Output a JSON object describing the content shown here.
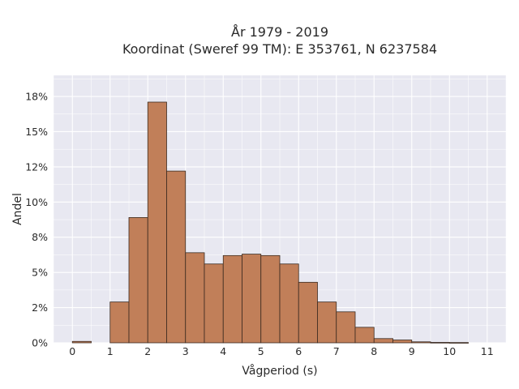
{
  "chart_data": {
    "type": "bar",
    "title": [
      "År 1979 - 2019",
      "Koordinat (Sweref 99 TM): E 353761, N 6237584"
    ],
    "xlabel": "Vågperiod (s)",
    "ylabel": "Andel",
    "xlim": [
      -0.5,
      11.5
    ],
    "ylim": [
      0,
      0.19
    ],
    "grid": true,
    "bar_width": 0.5,
    "bar_color": "#c17f59",
    "bar_edge_color": "#3a2a20",
    "bins": [
      {
        "x0": 0.0,
        "x1": 0.5,
        "value": 0.001
      },
      {
        "x0": 1.0,
        "x1": 1.5,
        "value": 0.029
      },
      {
        "x0": 1.5,
        "x1": 2.0,
        "value": 0.089
      },
      {
        "x0": 2.0,
        "x1": 2.5,
        "value": 0.171
      },
      {
        "x0": 2.5,
        "x1": 3.0,
        "value": 0.122
      },
      {
        "x0": 3.0,
        "x1": 3.5,
        "value": 0.064
      },
      {
        "x0": 3.5,
        "x1": 4.0,
        "value": 0.056
      },
      {
        "x0": 4.0,
        "x1": 4.5,
        "value": 0.062
      },
      {
        "x0": 4.5,
        "x1": 5.0,
        "value": 0.063
      },
      {
        "x0": 5.0,
        "x1": 5.5,
        "value": 0.062
      },
      {
        "x0": 5.5,
        "x1": 6.0,
        "value": 0.056
      },
      {
        "x0": 6.0,
        "x1": 6.5,
        "value": 0.043
      },
      {
        "x0": 6.5,
        "x1": 7.0,
        "value": 0.029
      },
      {
        "x0": 7.0,
        "x1": 7.5,
        "value": 0.022
      },
      {
        "x0": 7.5,
        "x1": 8.0,
        "value": 0.011
      },
      {
        "x0": 8.0,
        "x1": 8.5,
        "value": 0.003
      },
      {
        "x0": 8.5,
        "x1": 9.0,
        "value": 0.002
      },
      {
        "x0": 9.0,
        "x1": 9.5,
        "value": 0.0007
      },
      {
        "x0": 9.5,
        "x1": 10.0,
        "value": 0.0003
      },
      {
        "x0": 10.0,
        "x1": 10.5,
        "value": 0.0002
      }
    ],
    "x_ticks": [
      {
        "value": 0,
        "label": "0"
      },
      {
        "value": 1,
        "label": "1"
      },
      {
        "value": 2,
        "label": "2"
      },
      {
        "value": 3,
        "label": "3"
      },
      {
        "value": 4,
        "label": "4"
      },
      {
        "value": 5,
        "label": "5"
      },
      {
        "value": 6,
        "label": "6"
      },
      {
        "value": 7,
        "label": "7"
      },
      {
        "value": 8,
        "label": "8"
      },
      {
        "value": 9,
        "label": "9"
      },
      {
        "value": 10,
        "label": "10"
      },
      {
        "value": 11,
        "label": "11"
      }
    ],
    "y_ticks": [
      {
        "value": 0.0,
        "label": "0%"
      },
      {
        "value": 0.025,
        "label": "2%"
      },
      {
        "value": 0.05,
        "label": "5%"
      },
      {
        "value": 0.075,
        "label": "8%"
      },
      {
        "value": 0.1,
        "label": "10%"
      },
      {
        "value": 0.125,
        "label": "12%"
      },
      {
        "value": 0.15,
        "label": "15%"
      },
      {
        "value": 0.175,
        "label": "18%"
      }
    ],
    "colors": {
      "plot_background": "#e8e8f1",
      "grid": "#ffffff"
    }
  }
}
